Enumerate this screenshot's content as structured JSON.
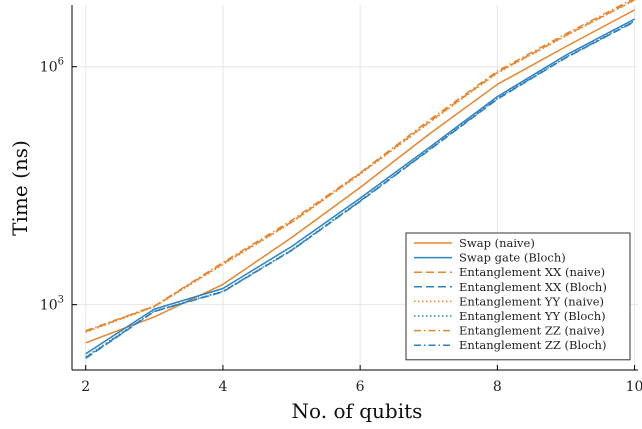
{
  "chart_data": {
    "type": "line",
    "title": "",
    "xlabel": "No. of qubits",
    "ylabel": "Time (ns)",
    "x": [
      2,
      3,
      4,
      5,
      6,
      7,
      8,
      9,
      10
    ],
    "xlim": [
      1.8,
      10.05
    ],
    "xticks": [
      2,
      4,
      6,
      8,
      10
    ],
    "xtick_labels": [
      "2",
      "4",
      "6",
      "8",
      "10"
    ],
    "yscale": "log",
    "ylim": [
      150,
      6000000
    ],
    "yticks": [
      1000,
      1000000
    ],
    "ytick_labels": [
      {
        "base": "10",
        "exp": "3"
      },
      {
        "base": "10",
        "exp": "6"
      }
    ],
    "grid": true,
    "legend_position": "bottom-right",
    "series": [
      {
        "name": "Swap (naive)",
        "color": "#E8852A",
        "dash": "solid",
        "values": [
          330,
          700,
          1800,
          7000,
          30000,
          140000,
          600000,
          1800000,
          5200000
        ]
      },
      {
        "name": "Swap gate (Bloch)",
        "color": "#2E82C0",
        "dash": "solid",
        "values": [
          240,
          880,
          1600,
          5400,
          22000,
          95000,
          420000,
          1400000,
          4000000
        ]
      },
      {
        "name": "Entanglement XX (naive)",
        "color": "#E8852A",
        "dash": "dashed",
        "values": [
          460,
          950,
          3300,
          11000,
          45000,
          200000,
          850000,
          2500000,
          7000000
        ]
      },
      {
        "name": "Entanglement XX (Bloch)",
        "color": "#2E82C0",
        "dash": "dashed",
        "values": [
          210,
          820,
          1450,
          4800,
          20000,
          88000,
          390000,
          1300000,
          3700000
        ]
      },
      {
        "name": "Entanglement YY (naive)",
        "color": "#E8852A",
        "dash": "dotted",
        "values": [
          450,
          940,
          3200,
          10800,
          44000,
          195000,
          830000,
          2450000,
          6900000
        ]
      },
      {
        "name": "Entanglement YY (Bloch)",
        "color": "#2E82C0",
        "dash": "dotted",
        "values": [
          220,
          830,
          1480,
          4900,
          20500,
          90000,
          400000,
          1320000,
          3800000
        ]
      },
      {
        "name": "Entanglement ZZ (naive)",
        "color": "#E8852A",
        "dash": "dashdot",
        "values": [
          470,
          960,
          3400,
          11500,
          46000,
          210000,
          880000,
          2600000,
          7300000
        ]
      },
      {
        "name": "Entanglement ZZ (Bloch)",
        "color": "#2E82C0",
        "dash": "dashdot",
        "values": [
          215,
          825,
          1460,
          4850,
          20200,
          89000,
          395000,
          1310000,
          3750000
        ]
      }
    ]
  }
}
